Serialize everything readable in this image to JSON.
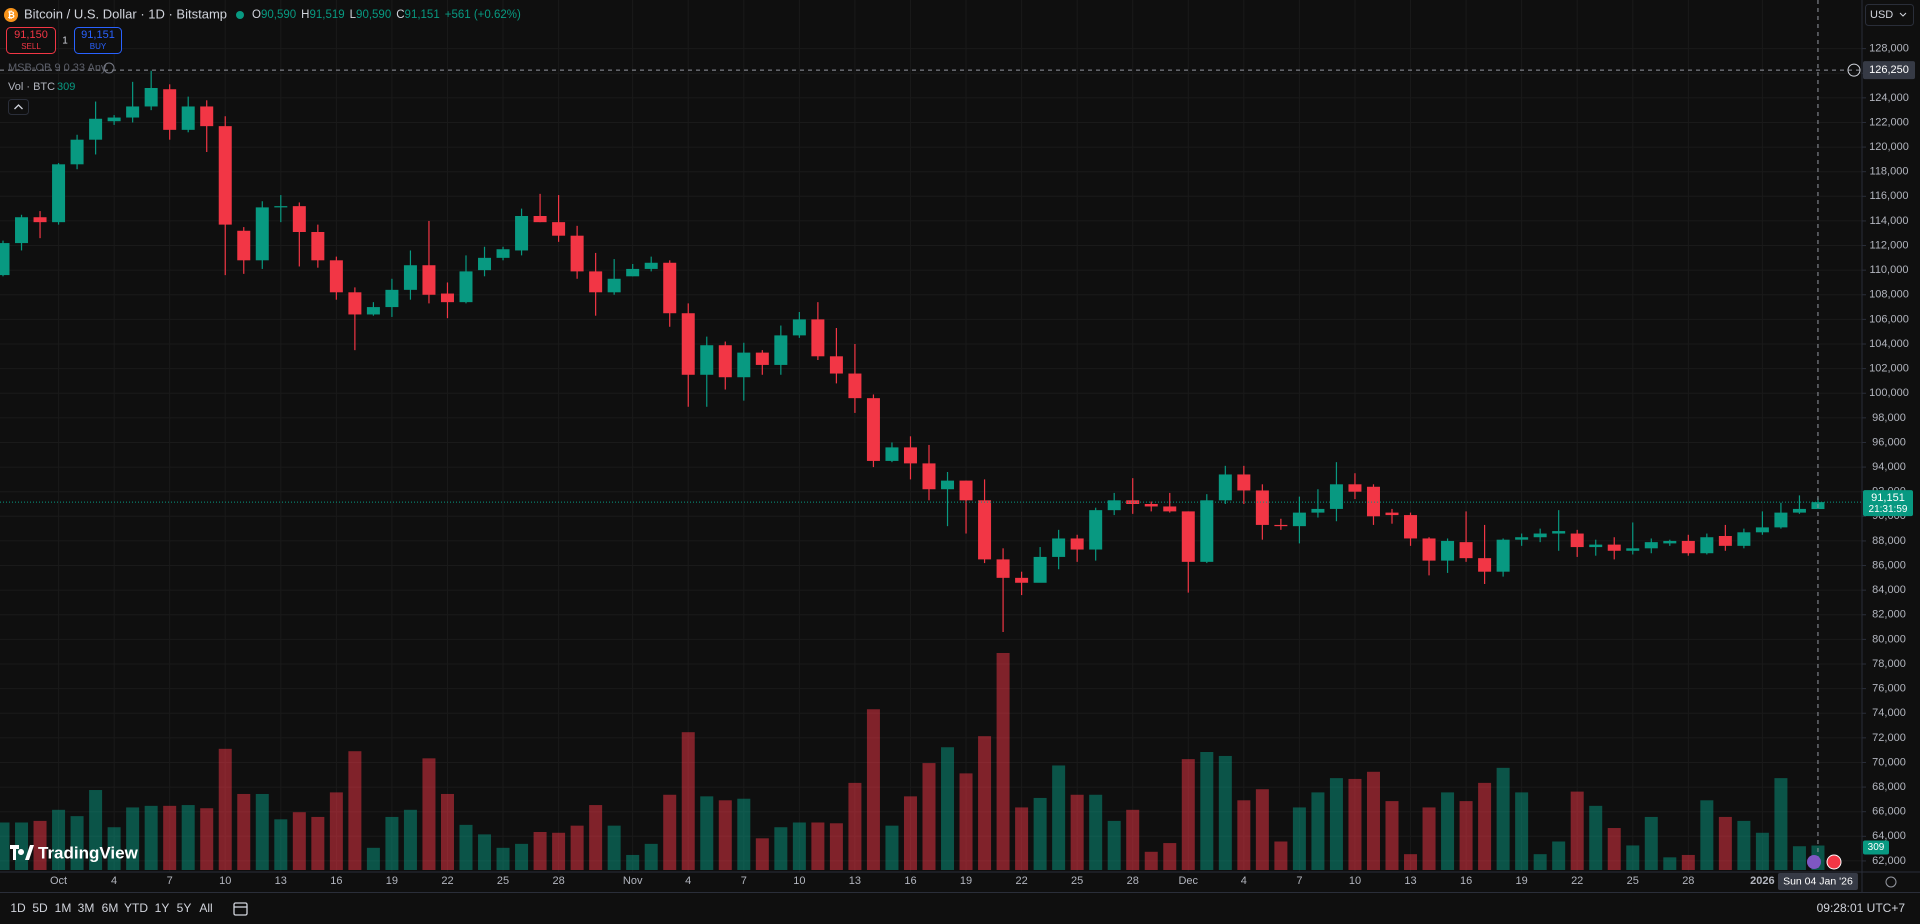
{
  "header": {
    "symbol": "Bitcoin / U.S. Dollar · 1D · Bitstamp",
    "ohlc": [
      {
        "key": "O",
        "value": "90,590"
      },
      {
        "key": "H",
        "value": "91,519"
      },
      {
        "key": "L",
        "value": "90,590"
      },
      {
        "key": "C",
        "value": "91,151"
      }
    ],
    "change": "+561 (+0.62%)",
    "sell": {
      "price": "91,150",
      "label": "SELL"
    },
    "spread": "1",
    "buy": {
      "price": "91,151",
      "label": "BUY"
    },
    "indicator": "MSB-OB 9 0.33 Any",
    "volume_label": "Vol · BTC",
    "currency": "USD"
  },
  "logo": "TradingView",
  "toolbar": {
    "ranges": [
      "1D",
      "5D",
      "1M",
      "3M",
      "6M",
      "YTD",
      "1Y",
      "5Y",
      "All"
    ],
    "clock": "09:28:01 UTC+7"
  },
  "chart_data": {
    "type": "candlestick",
    "up_color": "#089981",
    "down_color": "#f23645",
    "grid": true,
    "categories": [
      null,
      null,
      null,
      "Oct",
      null,
      null,
      "4",
      null,
      null,
      "7",
      null,
      null,
      "10",
      null,
      null,
      "13",
      null,
      null,
      "16",
      null,
      null,
      "19",
      null,
      null,
      "22",
      null,
      null,
      "25",
      null,
      null,
      "28",
      null,
      null,
      null,
      "Nov",
      null,
      null,
      "4",
      null,
      null,
      "7",
      null,
      null,
      "10",
      null,
      null,
      "13",
      null,
      null,
      "16",
      null,
      null,
      "19",
      null,
      null,
      "22",
      null,
      null,
      "25",
      null,
      null,
      "28",
      null,
      null,
      "Dec",
      null,
      null,
      "4",
      null,
      null,
      "7",
      null,
      null,
      "10",
      null,
      null,
      "13",
      null,
      null,
      "16",
      null,
      null,
      "19",
      null,
      null,
      "22",
      null,
      null,
      "25",
      null,
      null,
      "28",
      null,
      null,
      null,
      "2026",
      null,
      null,
      null
    ],
    "open": [
      109600,
      112200,
      114300,
      113900,
      118600,
      120600,
      122100,
      122400,
      123300,
      124700,
      121400,
      123300,
      121700,
      113200,
      110800,
      115100,
      115200,
      113100,
      110800,
      108200,
      106400,
      107000,
      108400,
      110400,
      108100,
      107400,
      110000,
      111000,
      111600,
      114400,
      113900,
      112800,
      109900,
      108200,
      109500,
      110100,
      110600,
      106500,
      101500,
      103900,
      101300,
      103300,
      102300,
      104700,
      106000,
      103000,
      101600,
      99600,
      94500,
      95600,
      94300,
      92200,
      92900,
      91300,
      86500,
      85000,
      84600,
      86700,
      88200,
      87300,
      90500,
      91300,
      91000,
      90800,
      90400,
      86300,
      91300,
      93400,
      92100,
      89300,
      89200,
      90300,
      90600,
      92600,
      92400,
      90300,
      90100,
      88200,
      86400,
      87900,
      86600,
      85500,
      88100,
      88300,
      88600,
      88600,
      87500,
      87700,
      87200,
      87400,
      87800,
      88000,
      87000,
      88400,
      87600,
      88700,
      89100,
      90300,
      90590
    ],
    "high": [
      112400,
      114500,
      114800,
      118700,
      121000,
      123700,
      122600,
      125300,
      126200,
      125100,
      124100,
      123800,
      122500,
      113500,
      115600,
      116100,
      115500,
      113700,
      111100,
      108600,
      107400,
      109300,
      111600,
      114000,
      109000,
      111200,
      111900,
      111900,
      115000,
      116200,
      116100,
      113600,
      111400,
      110900,
      110500,
      111100,
      110800,
      107300,
      104600,
      104200,
      104100,
      103500,
      105500,
      106600,
      107400,
      105300,
      104000,
      99900,
      96000,
      96500,
      95800,
      93600,
      92900,
      93000,
      87400,
      85500,
      87500,
      88900,
      88500,
      90700,
      91900,
      93100,
      91200,
      91900,
      90400,
      91800,
      94100,
      94100,
      92600,
      89800,
      91600,
      92200,
      94400,
      93500,
      92600,
      90600,
      90300,
      88300,
      88200,
      90400,
      89300,
      88200,
      88600,
      89000,
      90500,
      88900,
      88100,
      88300,
      89500,
      88200,
      88100,
      88500,
      88600,
      89300,
      89000,
      90400,
      91100,
      91700,
      91519
    ],
    "low": [
      109500,
      111600,
      112600,
      113700,
      118200,
      119400,
      121800,
      122000,
      123000,
      120600,
      121200,
      119600,
      109600,
      109700,
      110100,
      113900,
      110300,
      110200,
      107600,
      103500,
      106300,
      106200,
      107600,
      107300,
      106100,
      107300,
      109500,
      110800,
      111200,
      113900,
      112300,
      109300,
      106300,
      108000,
      109500,
      109900,
      105400,
      98900,
      98900,
      100300,
      99400,
      101500,
      101500,
      104500,
      102700,
      100800,
      98400,
      94000,
      94400,
      93000,
      91300,
      89200,
      88600,
      86200,
      80600,
      83600,
      84700,
      85700,
      86300,
      86400,
      90100,
      90200,
      90400,
      90300,
      83800,
      86200,
      91000,
      91000,
      88100,
      88900,
      87800,
      89900,
      89600,
      91400,
      89300,
      89400,
      87600,
      85200,
      85400,
      86300,
      84500,
      85100,
      87600,
      87900,
      87200,
      86700,
      86800,
      86500,
      86900,
      87000,
      87600,
      86800,
      86900,
      87200,
      87400,
      88500,
      89000,
      90200,
      90590
    ],
    "close": [
      112200,
      114300,
      113900,
      118600,
      120600,
      122300,
      122400,
      123300,
      124800,
      121400,
      123300,
      121700,
      113700,
      110800,
      115100,
      115200,
      113100,
      110800,
      108200,
      106400,
      107000,
      108400,
      110400,
      108000,
      107400,
      109900,
      111000,
      111700,
      114400,
      113900,
      112800,
      109900,
      108200,
      109300,
      110100,
      110600,
      106500,
      101500,
      103900,
      101300,
      103300,
      102300,
      104700,
      106000,
      103000,
      101600,
      99600,
      94500,
      95600,
      94300,
      92200,
      92900,
      91300,
      86500,
      85000,
      84600,
      86700,
      88200,
      87300,
      90500,
      91300,
      91000,
      90800,
      90400,
      86300,
      91300,
      93400,
      92100,
      89300,
      89200,
      90300,
      90600,
      92600,
      92000,
      90000,
      90100,
      88200,
      86400,
      88000,
      86600,
      85500,
      88100,
      88300,
      88600,
      88800,
      87500,
      87700,
      87200,
      87400,
      87900,
      88000,
      87000,
      88300,
      87600,
      88700,
      89100,
      90300,
      90600,
      91151
    ],
    "volume": [
      600,
      600,
      620,
      760,
      680,
      1010,
      540,
      790,
      810,
      810,
      820,
      780,
      1530,
      960,
      960,
      640,
      730,
      670,
      980,
      1500,
      280,
      670,
      760,
      1410,
      960,
      570,
      450,
      280,
      330,
      480,
      470,
      560,
      820,
      560,
      190,
      330,
      950,
      1740,
      930,
      880,
      900,
      400,
      540,
      600,
      600,
      590,
      1100,
      2030,
      560,
      930,
      1350,
      1550,
      1220,
      1690,
      2740,
      790,
      910,
      1320,
      950,
      950,
      620,
      760,
      230,
      340,
      1400,
      1490,
      1440,
      880,
      1020,
      360,
      790,
      980,
      1160,
      1150,
      1240,
      870,
      200,
      790,
      980,
      870,
      1100,
      1290,
      980,
      200,
      360,
      990,
      810,
      530,
      310,
      670,
      160,
      190,
      880,
      670,
      620,
      470,
      1160,
      300,
      309
    ],
    "ylim": [
      61100,
      131300
    ],
    "yticks": [
      {
        "value": 62000,
        "label": "62,000"
      },
      {
        "value": 64000,
        "label": "64,000"
      },
      {
        "value": 66000,
        "label": "66,000"
      },
      {
        "value": 68000,
        "label": "68,000"
      },
      {
        "value": 70000,
        "label": "70,000"
      },
      {
        "value": 72000,
        "label": "72,000"
      },
      {
        "value": 74000,
        "label": "74,000"
      },
      {
        "value": 76000,
        "label": "76,000"
      },
      {
        "value": 78000,
        "label": "78,000"
      },
      {
        "value": 80000,
        "label": "80,000"
      },
      {
        "value": 82000,
        "label": "82,000"
      },
      {
        "value": 84000,
        "label": "84,000"
      },
      {
        "value": 86000,
        "label": "86,000"
      },
      {
        "value": 88000,
        "label": "88,000"
      },
      {
        "value": 90000,
        "label": "90,000"
      },
      {
        "value": 92000,
        "label": "92,000"
      },
      {
        "value": 94000,
        "label": "94,000"
      },
      {
        "value": 96000,
        "label": "96,000"
      },
      {
        "value": 98000,
        "label": "98,000"
      },
      {
        "value": 100000,
        "label": "100,000"
      },
      {
        "value": 102000,
        "label": "102,000"
      },
      {
        "value": 104000,
        "label": "104,000"
      },
      {
        "value": 106000,
        "label": "106,000"
      },
      {
        "value": 108000,
        "label": "108,000"
      },
      {
        "value": 110000,
        "label": "110,000"
      },
      {
        "value": 112000,
        "label": "112,000"
      },
      {
        "value": 114000,
        "label": "114,000"
      },
      {
        "value": 116000,
        "label": "116,000"
      },
      {
        "value": 118000,
        "label": "118,000"
      },
      {
        "value": 120000,
        "label": "120,000"
      },
      {
        "value": 122000,
        "label": "122,000"
      },
      {
        "value": 124000,
        "label": "124,000"
      },
      {
        "value": 126000,
        "label": "126,000"
      },
      {
        "value": 128000,
        "label": "128,000"
      }
    ],
    "last_price": {
      "value": 91151,
      "label": "91,151"
    },
    "countdown": "21:31:59",
    "crosshair": {
      "value": 126250,
      "label": "126,250",
      "date_label": "Sun 04 Jan '26"
    }
  }
}
